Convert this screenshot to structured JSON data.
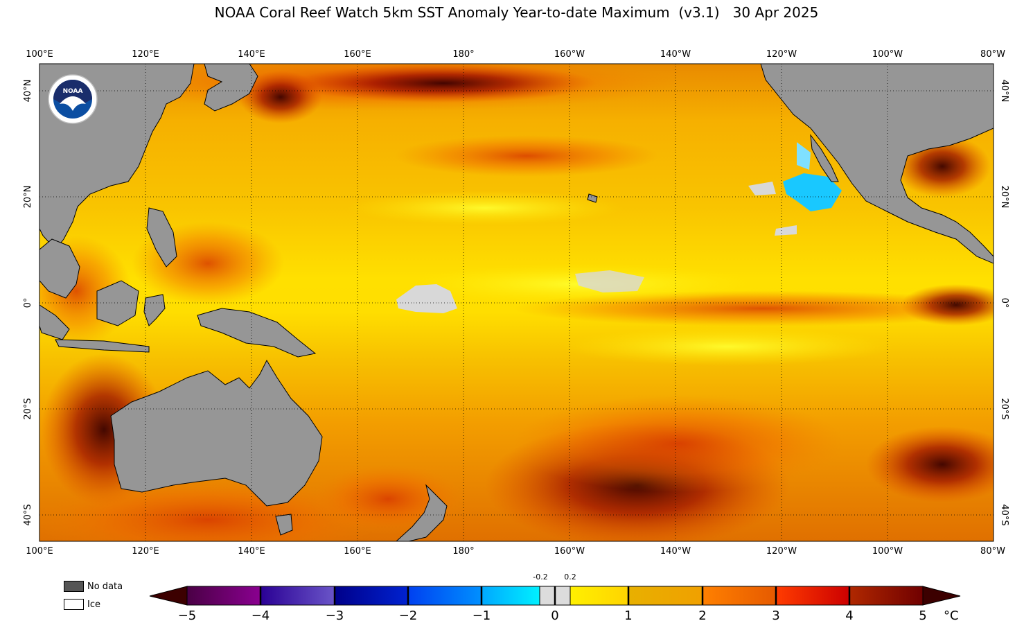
{
  "title": "NOAA Coral Reef Watch 5km SST Anomaly Year-to-date Maximum  (v3.1)   30 Apr 2025",
  "map": {
    "lon_labels": [
      "100°E",
      "120°E",
      "140°E",
      "160°E",
      "180°",
      "160°W",
      "140°W",
      "120°W",
      "100°W",
      "80°W"
    ],
    "lat_labels": [
      "40°N",
      "20°N",
      "0°",
      "20°S",
      "40°S"
    ],
    "land_color": "#969696",
    "no_data_color": "#555555",
    "ice_color": "#ffffff",
    "logo": "NOAA",
    "logo_icon": "noaa-logo-icon"
  },
  "legend": {
    "no_data_label": "No data",
    "ice_label": "Ice"
  },
  "colorbar": {
    "ticks": [
      "−5",
      "−4",
      "−3",
      "−2",
      "−1",
      "0",
      "1",
      "2",
      "3",
      "4",
      "5"
    ],
    "small_labels": [
      "-0.2",
      "0.2"
    ],
    "unit": "°C",
    "range": [
      -5,
      5
    ],
    "colors": {
      "below_min": "#3c0000",
      "m5_m4": [
        "#4a0045",
        "#8a0090"
      ],
      "m4_m3": [
        "#2a0094",
        "#6a55c8"
      ],
      "m3_m2": [
        "#00008a",
        "#0022d0"
      ],
      "m2_m1": [
        "#0040f0",
        "#0090ff"
      ],
      "m1_m02": [
        "#00a8ff",
        "#00f0ff"
      ],
      "m02_02": "#dcdcdc",
      "p02_1": [
        "#fff000",
        "#ffd400"
      ],
      "p1_2": [
        "#e8b000",
        "#f0a000"
      ],
      "p2_3": [
        "#ff8000",
        "#e65a00"
      ],
      "p3_4": [
        "#ff3c00",
        "#cc0000"
      ],
      "p4_5": [
        "#b02800",
        "#700000"
      ],
      "above_max": "#3c0000"
    }
  }
}
